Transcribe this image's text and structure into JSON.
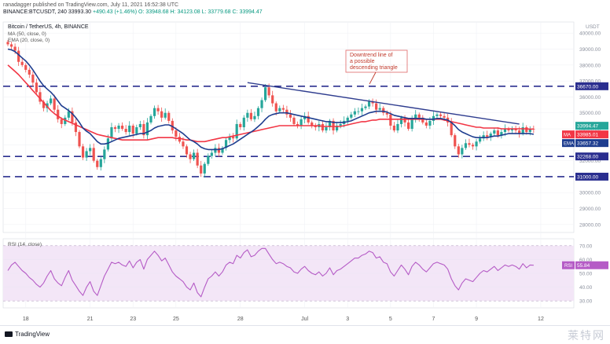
{
  "header": {
    "publisher_line": "ranadagger published on TradingView.com, July 11, 2021 16:52:38 UTC",
    "symbol": "BINANCE:BTCUSDT, 240",
    "last": "33993.30",
    "change": "+490.43 (+1.46%)",
    "ohlc": "O: 33948.68  H: 34123.08  L: 33779.68  C: 33994.47"
  },
  "legend": {
    "title": "Bitcoin / TetherUS, 4h, BINANCE",
    "ma": "MA (50, close, 0)",
    "ema": "EMA (20, close, 0)",
    "rsi": "RSI (14, close)"
  },
  "annotation": "Downtrend line of a possible descending triangle",
  "footer": {
    "brand": "TradingView",
    "watermark": "莱特网"
  },
  "colors": {
    "up": "#26a69a",
    "down": "#ef5350",
    "ma50": "#f23645",
    "ema20": "#1e3d8f",
    "level": "#2a2e8f",
    "trend": "#2f3d8f",
    "rsi": "#b55bc6",
    "rsi_band": "#f3e6f7"
  },
  "chart_data": {
    "type": "candlestick",
    "title": "Bitcoin / TetherUS, 4h, BINANCE",
    "currency": "USDT",
    "y_ticks": [
      28000,
      29000,
      30000,
      31000,
      32000,
      33000,
      34000,
      35000,
      36000,
      37000,
      38000,
      39000,
      40000
    ],
    "ylim": [
      27500,
      40700
    ],
    "x_labels": [
      {
        "label": "18",
        "i": 5
      },
      {
        "label": "21",
        "i": 23
      },
      {
        "label": "23",
        "i": 35
      },
      {
        "label": "25",
        "i": 47
      },
      {
        "label": "28",
        "i": 65
      },
      {
        "label": "Jul",
        "i": 83
      },
      {
        "label": "3",
        "i": 95
      },
      {
        "label": "5",
        "i": 107
      },
      {
        "label": "7",
        "i": 119
      },
      {
        "label": "9",
        "i": 131
      },
      {
        "label": "12",
        "i": 149
      }
    ],
    "closes": [
      39300,
      39150,
      38900,
      38200,
      38000,
      37700,
      37400,
      36900,
      36300,
      35700,
      35300,
      35600,
      35900,
      35200,
      34600,
      34300,
      34700,
      35100,
      34400,
      33800,
      32900,
      32200,
      32600,
      32800,
      32000,
      31600,
      32100,
      32700,
      33400,
      34100,
      34000,
      34200,
      34000,
      33800,
      34200,
      33700,
      34100,
      34300,
      33600,
      34400,
      34800,
      35300,
      35100,
      34700,
      35000,
      34500,
      33900,
      33500,
      33200,
      32900,
      32400,
      32100,
      32500,
      31700,
      31200,
      31800,
      32300,
      32500,
      32800,
      32500,
      32800,
      33300,
      33500,
      33400,
      34300,
      34100,
      34700,
      35000,
      34600,
      34800,
      35300,
      35800,
      36600,
      36100,
      35600,
      35100,
      35300,
      35200,
      34900,
      34700,
      34300,
      34200,
      34600,
      34800,
      34400,
      34200,
      34100,
      34300,
      33900,
      34100,
      34500,
      33900,
      34200,
      34300,
      34500,
      34700,
      34900,
      35100,
      35100,
      35300,
      35400,
      35700,
      35600,
      35200,
      35300,
      35000,
      34900,
      34200,
      33900,
      34300,
      34700,
      34400,
      34000,
      34600,
      34900,
      34700,
      34400,
      34200,
      34500,
      34800,
      34900,
      34800,
      34700,
      34400,
      33600,
      32900,
      32400,
      32800,
      33100,
      33000,
      32900,
      33200,
      33400,
      33600,
      33500,
      33700,
      33900,
      33600,
      33800,
      34000,
      33900,
      34000,
      33900,
      33700,
      34100,
      33800,
      34000,
      33994
    ],
    "ma50": [
      38000,
      37800,
      37600,
      37400,
      37150,
      36900,
      36650,
      36400,
      36150,
      35900,
      35650,
      35400,
      35150,
      34950,
      34800,
      34650,
      34550,
      34450,
      34350,
      34250,
      34150,
      34050,
      33950,
      33850,
      33750,
      33650,
      33600,
      33550,
      33500,
      33450,
      33400,
      33350,
      33300,
      33300,
      33300,
      33300,
      33300,
      33300,
      33300,
      33300,
      33350,
      33400,
      33450,
      33450,
      33450,
      33450,
      33450,
      33400,
      33400,
      33350,
      33300,
      33300,
      33250,
      33200,
      33200,
      33200,
      33250,
      33300,
      33350,
      33400,
      33450,
      33450,
      33500,
      33550,
      33600,
      33650,
      33700,
      33750,
      33800,
      33850,
      33900,
      33950,
      34000,
      34050,
      34100,
      34150,
      34200,
      34200,
      34200,
      34200,
      34200,
      34200,
      34200,
      34200,
      34200,
      34200,
      34200,
      34200,
      34150,
      34150,
      34150,
      34150,
      34150,
      34150,
      34200,
      34250,
      34300,
      34350,
      34400,
      34450,
      34450,
      34500,
      34550,
      34550,
      34600,
      34600,
      34600,
      34600,
      34600,
      34600,
      34600,
      34600,
      34600,
      34600,
      34600,
      34600,
      34600,
      34600,
      34600,
      34600,
      34600,
      34600,
      34550,
      34500,
      34450,
      34400,
      34350,
      34300,
      34250,
      34200,
      34150,
      34100,
      34100,
      34050,
      34050,
      34050,
      34050,
      34050,
      34000,
      34000,
      34000,
      34000,
      34000,
      34000,
      34000,
      34000,
      33980,
      33985
    ],
    "ema20": [
      39000,
      38950,
      38850,
      38650,
      38450,
      38250,
      38000,
      37700,
      37350,
      37000,
      36700,
      36500,
      36300,
      36050,
      35750,
      35450,
      35300,
      35150,
      34950,
      34700,
      34400,
      34050,
      33850,
      33700,
      33450,
      33200,
      33050,
      33050,
      33100,
      33200,
      33300,
      33400,
      33450,
      33500,
      33550,
      33600,
      33650,
      33700,
      33700,
      33800,
      33900,
      34050,
      34150,
      34200,
      34250,
      34250,
      34150,
      34000,
      33850,
      33700,
      33500,
      33300,
      33200,
      33050,
      32850,
      32750,
      32700,
      32700,
      32700,
      32700,
      32750,
      32850,
      32950,
      33050,
      33200,
      33350,
      33500,
      33650,
      33800,
      33950,
      34150,
      34350,
      34600,
      34800,
      34900,
      34950,
      35000,
      35000,
      35000,
      34950,
      34900,
      34850,
      34800,
      34750,
      34700,
      34650,
      34600,
      34550,
      34500,
      34450,
      34450,
      34400,
      34400,
      34400,
      34400,
      34450,
      34500,
      34600,
      34700,
      34800,
      34900,
      35000,
      35050,
      35100,
      35100,
      35100,
      35050,
      34950,
      34850,
      34800,
      34750,
      34700,
      34650,
      34650,
      34650,
      34650,
      34650,
      34600,
      34600,
      34600,
      34650,
      34650,
      34600,
      34550,
      34400,
      34200,
      33950,
      33800,
      33700,
      33600,
      33500,
      33450,
      33450,
      33450,
      33450,
      33500,
      33550,
      33550,
      33600,
      33650,
      33700,
      33700,
      33700,
      33700,
      33700,
      33700,
      33700,
      33657
    ],
    "levels": [
      {
        "value": 36670,
        "label": "36670.00"
      },
      {
        "value": 32268,
        "label": "32268.00"
      },
      {
        "value": 31000,
        "label": "31000.00"
      }
    ],
    "trendline": {
      "from": {
        "i": 67,
        "v": 36900
      },
      "to": {
        "i": 143,
        "v": 34300
      }
    },
    "price_tags": [
      {
        "label": "33994.47",
        "value": 33994,
        "color": "#26a69a",
        "tag": ""
      },
      {
        "label": "33985.01",
        "value": 33985,
        "color": "#f23645",
        "tag": "MA"
      },
      {
        "label": "33657.32",
        "value": 33657,
        "color": "#1e3d8f",
        "tag": "EMA"
      }
    ],
    "rsi": {
      "title": "RSI (14, close)",
      "ticks": [
        30,
        40,
        50,
        60,
        70
      ],
      "ylim": [
        25,
        75
      ],
      "band": [
        30,
        70
      ],
      "last_label": "55.84",
      "values": [
        52,
        56,
        58,
        55,
        52,
        50,
        47,
        45,
        42,
        40,
        43,
        48,
        52,
        46,
        43,
        41,
        47,
        52,
        45,
        41,
        37,
        34,
        40,
        44,
        37,
        34,
        41,
        48,
        53,
        58,
        57,
        58,
        56,
        55,
        59,
        54,
        58,
        60,
        53,
        60,
        63,
        66,
        63,
        59,
        61,
        56,
        51,
        48,
        46,
        44,
        40,
        38,
        43,
        36,
        33,
        40,
        46,
        48,
        51,
        48,
        51,
        56,
        58,
        57,
        63,
        61,
        65,
        67,
        62,
        63,
        66,
        68,
        68,
        64,
        60,
        57,
        58,
        57,
        55,
        54,
        51,
        50,
        53,
        55,
        52,
        50,
        49,
        51,
        48,
        50,
        54,
        49,
        52,
        53,
        55,
        57,
        59,
        61,
        61,
        63,
        64,
        66,
        65,
        61,
        62,
        58,
        57,
        51,
        48,
        52,
        56,
        53,
        49,
        55,
        58,
        56,
        53,
        51,
        54,
        57,
        58,
        57,
        56,
        53,
        46,
        41,
        38,
        43,
        46,
        45,
        44,
        47,
        50,
        52,
        51,
        53,
        55,
        52,
        54,
        56,
        55,
        56,
        55,
        53,
        57,
        54,
        56,
        55.84
      ]
    }
  }
}
